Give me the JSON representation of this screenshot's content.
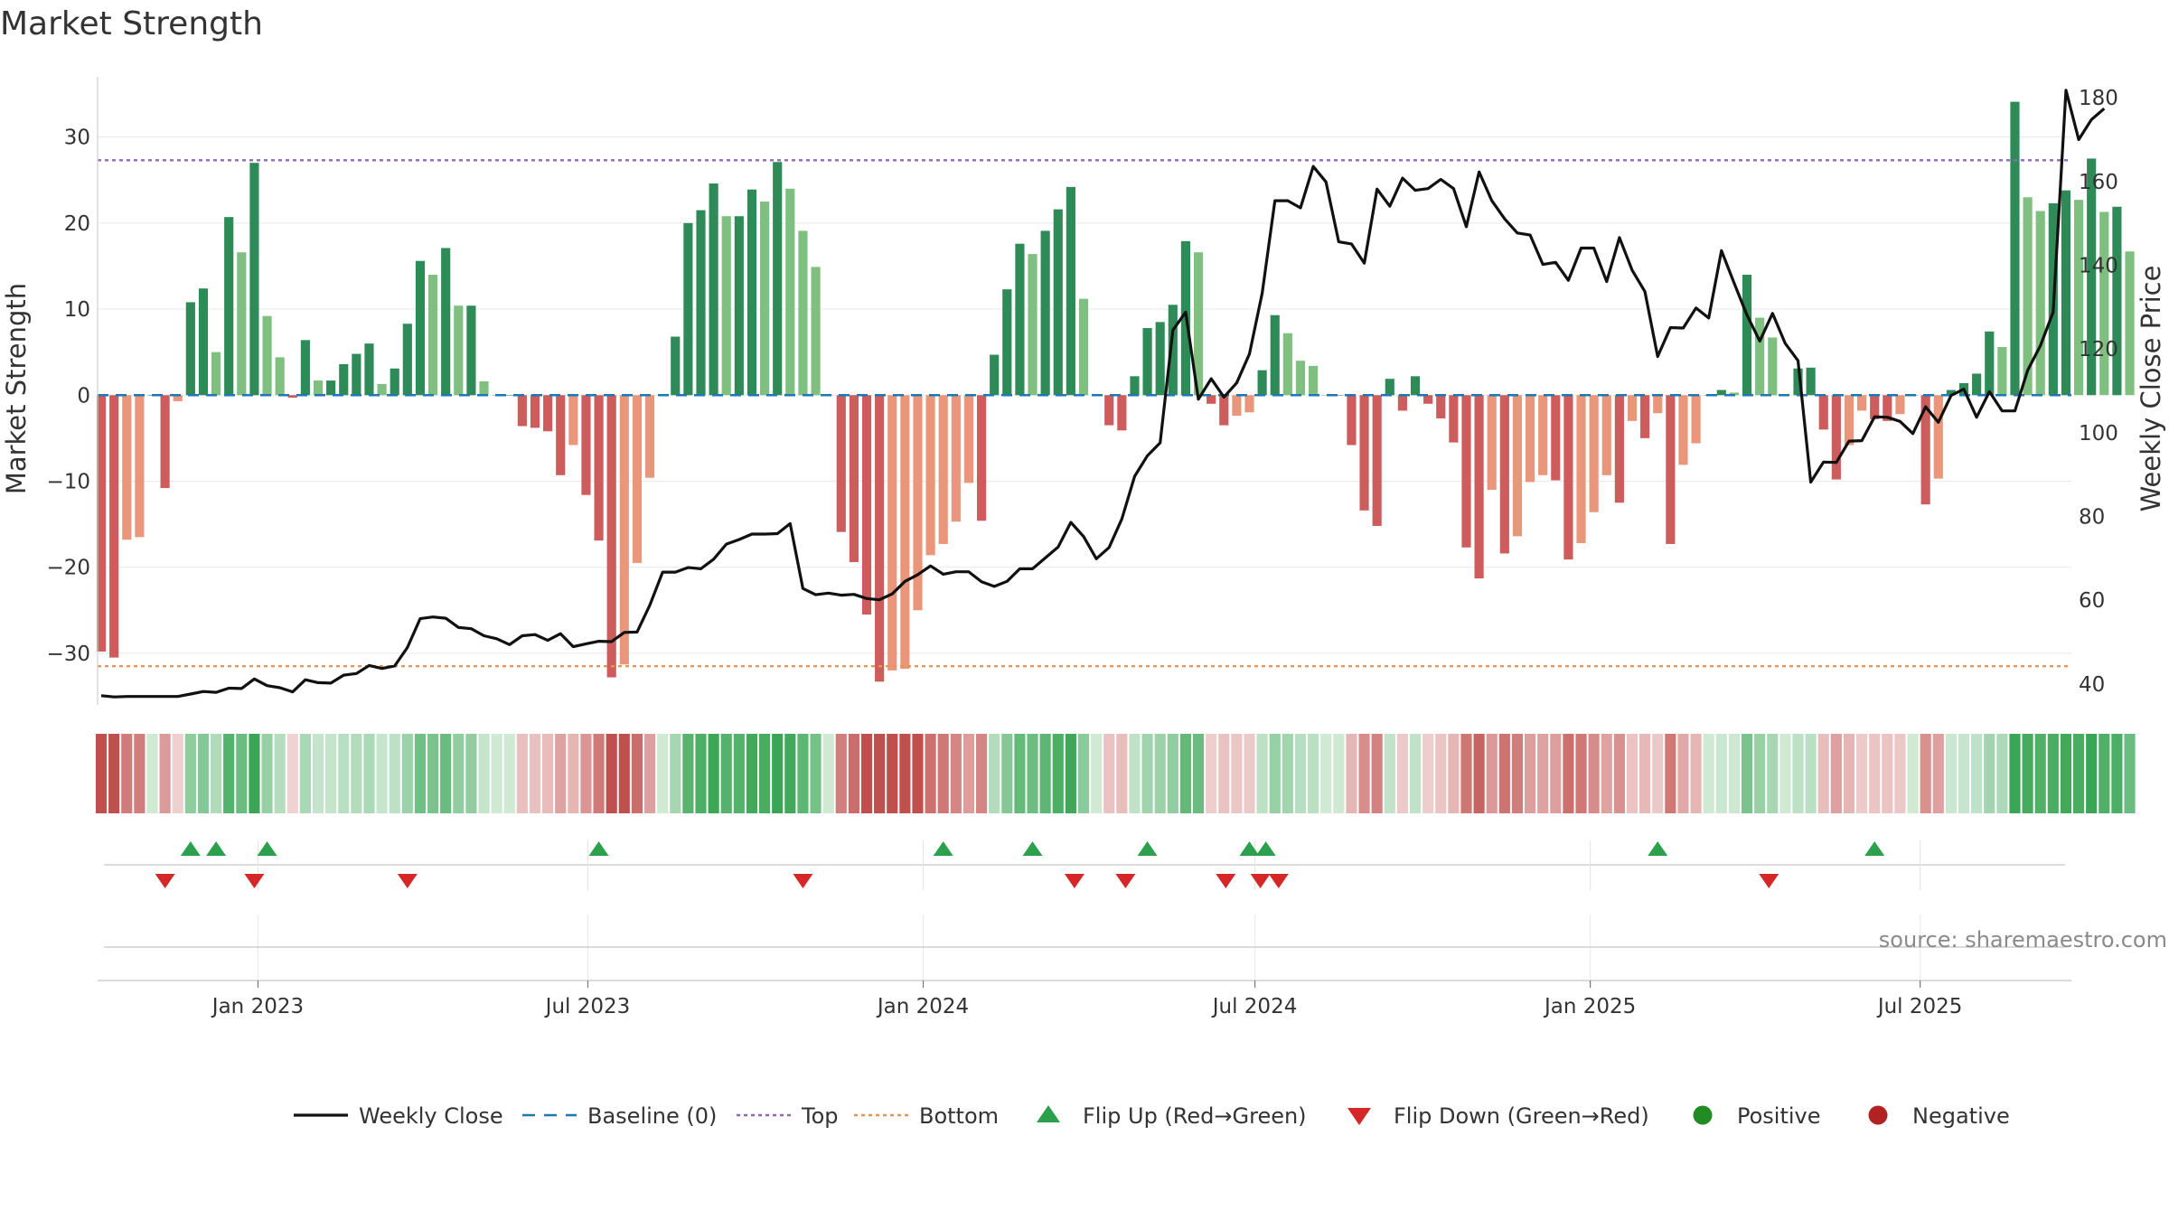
{
  "chart_data": {
    "type": "bar",
    "title": "Market Strength",
    "ylabel": "Market Strength",
    "y2label": "Weekly Close Price",
    "ylim": [
      -36,
      37
    ],
    "y2lim": [
      35,
      185
    ],
    "yticks": [
      30,
      20,
      10,
      0,
      -10,
      -20,
      -30
    ],
    "ytick_labels": [
      "30",
      "20",
      "10",
      "0",
      "−10",
      "−20",
      "−30"
    ],
    "y2ticks": [
      180,
      160,
      140,
      120,
      100,
      80,
      60,
      40
    ],
    "x_start": "2022-10-05",
    "x_end": "2025-09-22",
    "xticks": [
      {
        "date": "2023-01-01",
        "label": "Jan 2023"
      },
      {
        "date": "2023-07-01",
        "label": "Jul 2023"
      },
      {
        "date": "2024-01-01",
        "label": "Jan 2024"
      },
      {
        "date": "2024-07-01",
        "label": "Jul 2024"
      },
      {
        "date": "2025-01-01",
        "label": "Jan 2025"
      },
      {
        "date": "2025-07-01",
        "label": "Jul 2025"
      }
    ],
    "bar_dates_start": "2022-10-07",
    "bar_interval_days": 7,
    "top_level": 27.3,
    "bottom_level": -31.5,
    "grid": true,
    "legend_position": "bottom-center",
    "strength": [
      -29.8,
      -30.5,
      -16.8,
      -16.5,
      0,
      -10.8,
      -0.7,
      10.8,
      12.4,
      5,
      20.7,
      16.6,
      27,
      9.2,
      4.4,
      -0.3,
      6.4,
      1.7,
      1.7,
      3.6,
      4.8,
      6,
      1.3,
      3.1,
      8.3,
      15.6,
      14,
      17.1,
      10.4,
      10.4,
      1.6,
      0,
      0,
      -3.6,
      -3.8,
      -4.2,
      -9.3,
      -5.8,
      -11.6,
      -16.9,
      -32.8,
      -31.3,
      -19.5,
      -9.6,
      0,
      6.8,
      20,
      21.5,
      24.6,
      20.8,
      20.8,
      23.9,
      22.5,
      27.1,
      24,
      19.1,
      14.9,
      0,
      -15.9,
      -19.4,
      -25.5,
      -33.3,
      -32,
      -31.8,
      -25,
      -18.6,
      -17.3,
      -14.7,
      -10.2,
      -14.6,
      4.7,
      12.3,
      17.6,
      16.4,
      19.1,
      21.6,
      24.2,
      11.2,
      0,
      -3.5,
      -4.1,
      2.2,
      7.8,
      8.5,
      10.5,
      17.9,
      16.6,
      -1,
      -3.5,
      -2.4,
      -2,
      2.9,
      9.3,
      7.2,
      4,
      3.4,
      0,
      0,
      -5.8,
      -13.4,
      -15.2,
      1.9,
      -1.8,
      2.2,
      -1,
      -2.7,
      -5.5,
      -17.7,
      -21.3,
      -11,
      -18.4,
      -16.4,
      -10.1,
      -9.3,
      -9.9,
      -19.1,
      -17.2,
      -13.6,
      -9.3,
      -12.5,
      -3,
      -5,
      -2.1,
      -17.3,
      -8.1,
      -5.6,
      0,
      0.6,
      0.3,
      14,
      9,
      6.7,
      0,
      3.1,
      3.2,
      -4,
      -9.8,
      -5.8,
      -1.8,
      -2.8,
      -3,
      -2.2,
      0,
      -12.7,
      -9.7,
      0.6,
      1.4,
      2.5,
      7.4,
      5.6,
      34.1,
      23,
      21.4,
      22.3,
      23.8,
      22.7,
      27.5,
      21.3,
      21.9,
      16.7
    ],
    "weekly_close": [
      37.2,
      36.9,
      37,
      37,
      37,
      37,
      37,
      37.6,
      38.2,
      38,
      39,
      38.9,
      41.2,
      39.6,
      39.1,
      38.1,
      41,
      40.3,
      40.2,
      42.1,
      42.5,
      44.4,
      43.7,
      44.3,
      48.7,
      55.6,
      56,
      55.7,
      53.5,
      53.2,
      51.5,
      50.8,
      49.4,
      51.5,
      51.8,
      50.4,
      52,
      48.9,
      49.6,
      50.2,
      50.1,
      52.3,
      52.4,
      58.8,
      66.7,
      66.7,
      67.8,
      67.5,
      69.8,
      73.4,
      74.5,
      75.8,
      75.8,
      75.9,
      78.3,
      62.8,
      61.3,
      61.7,
      61.2,
      61.4,
      60.4,
      60.1,
      61.5,
      64.5,
      66.1,
      68.2,
      66.2,
      66.8,
      66.8,
      64.4,
      63.3,
      64.5,
      67.5,
      67.5,
      70.1,
      72.7,
      78.6,
      75.2,
      69.9,
      72.6,
      79.4,
      89.6,
      94.5,
      97.6,
      124.5,
      128.8,
      108,
      112.9,
      108.5,
      111.9,
      118.8,
      133.3,
      155.4,
      155.4,
      153.7,
      163.6,
      159.9,
      145.6,
      145.1,
      140.5,
      158.2,
      154.1,
      160.8,
      157.9,
      158.3,
      160.5,
      158.3,
      149.2,
      162.3,
      155.4,
      151.1,
      147.7,
      147.2,
      140.2,
      140.7,
      136.4,
      144.1,
      144.1,
      136.1,
      146.6,
      138.8,
      133.7,
      118.2,
      125.1,
      125,
      129.8,
      127.4,
      143.5,
      135.7,
      128.1,
      121.9,
      128.5,
      121.3,
      117.2,
      88.2,
      93,
      92.9,
      98,
      98.1,
      103.8,
      103.7,
      102.7,
      99.8,
      106.2,
      102.5,
      108.9,
      110.4,
      103.7,
      109.8,
      105.2,
      105.2,
      114.9,
      120.8,
      128.8,
      181.8,
      170,
      174.8,
      177.4
    ],
    "flip_up_dates": [
      "2022-11-25",
      "2022-12-09",
      "2023-01-06",
      "2023-07-07",
      "2024-01-12",
      "2024-03-01",
      "2024-05-03",
      "2024-06-28",
      "2024-07-07",
      "2025-02-07",
      "2025-06-06"
    ],
    "flip_down_dates": [
      "2022-11-11",
      "2022-12-30",
      "2023-03-24",
      "2023-10-27",
      "2024-03-24",
      "2024-04-21",
      "2024-06-15",
      "2024-07-04",
      "2024-07-14",
      "2025-04-09"
    ],
    "legend": [
      {
        "label": "Weekly Close",
        "marker": "line",
        "color": "#111111"
      },
      {
        "label": "Baseline (0)",
        "marker": "dash",
        "color": "#1f77b4"
      },
      {
        "label": "Top",
        "marker": "dot-purple",
        "color": "#9467bd"
      },
      {
        "label": "Bottom",
        "marker": "dot-orange",
        "color": "#e8964e"
      },
      {
        "label": "Flip Up (Red→Green)",
        "marker": "triangle-up",
        "color": "#2ca04c"
      },
      {
        "label": "Flip Down (Green→Red)",
        "marker": "triangle-down",
        "color": "#d62728"
      },
      {
        "label": "Positive",
        "marker": "circle",
        "color": "#228b22"
      },
      {
        "label": "Negative",
        "marker": "circle",
        "color": "#b22222"
      }
    ],
    "source": "source: sharemaestro.com"
  },
  "colors": {
    "pos_strong": "#2e8b57",
    "pos_light": "#7fbf7f",
    "neg_strong": "#cd5c5c",
    "neg_light": "#e9967a",
    "price_line": "#111111",
    "baseline": "#1f77b4",
    "top_line": "#9467bd",
    "bottom_line": "#e8964e"
  }
}
